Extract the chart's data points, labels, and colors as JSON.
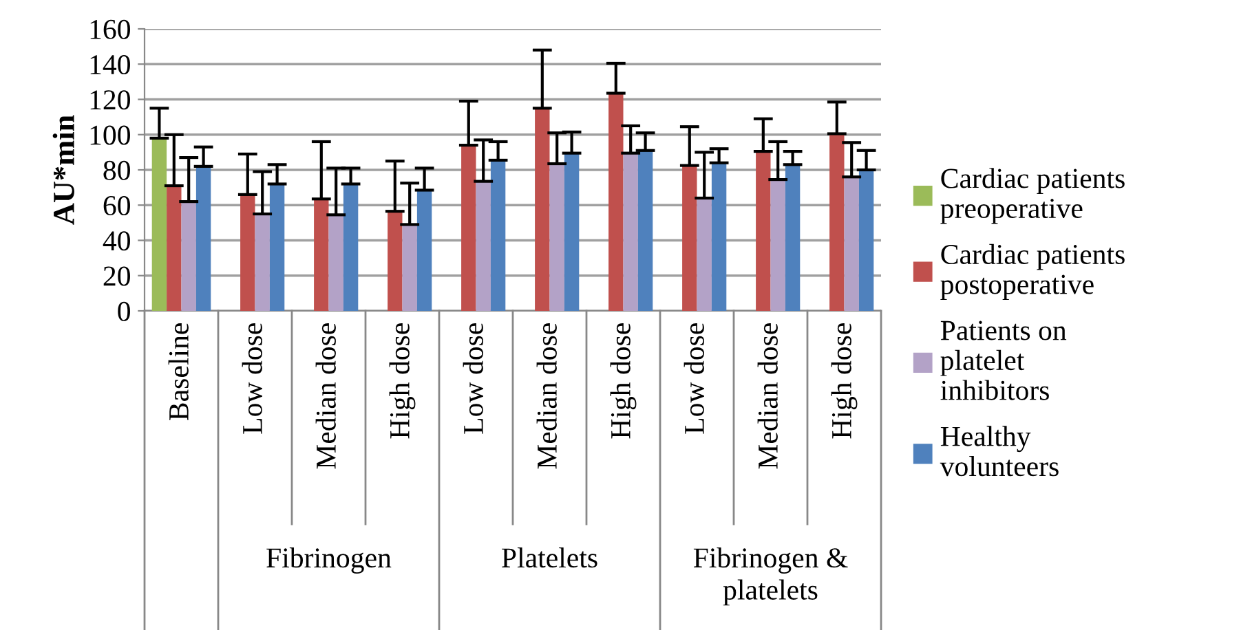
{
  "chart_data": {
    "type": "bar",
    "ylabel": "AU*min",
    "categories": [
      "Baseline",
      "Low dose",
      "Median dose",
      "High dose",
      "Low dose",
      "Median dose",
      "High dose",
      "Low dose",
      "Median dose",
      "High dose"
    ],
    "annotations": [
      "Fibrinogen",
      "Platelets",
      "Fibrinogen & platelets"
    ],
    "series": [
      {
        "name": "Cardiac patients preoperative",
        "color": "#9bbb59",
        "values": [
          98,
          null,
          null,
          null,
          null,
          null,
          null,
          null,
          null,
          null
        ],
        "errors": [
          [
            98,
            115
          ],
          null,
          null,
          null,
          null,
          null,
          null,
          null,
          null,
          null
        ]
      },
      {
        "name": "Cardiac patients postoperative",
        "color": "#c0504d",
        "values": [
          71,
          66,
          63.5,
          56.5,
          94,
          115,
          123.5,
          82.5,
          90.5,
          100.5
        ],
        "errors": [
          [
            71,
            100
          ],
          [
            66,
            89
          ],
          [
            63.5,
            96
          ],
          [
            56.5,
            85
          ],
          [
            94,
            119
          ],
          [
            115,
            148
          ],
          [
            123.5,
            140.5
          ],
          [
            82.5,
            104.5
          ],
          [
            90.5,
            109
          ],
          [
            100.5,
            118.5
          ]
        ]
      },
      {
        "name": "Patients on platelet inhibitors",
        "color": "#b3a2c7",
        "values": [
          62,
          55,
          54.5,
          49,
          73.5,
          83.5,
          89.5,
          64,
          74.5,
          76
        ],
        "errors": [
          [
            62,
            87
          ],
          [
            55,
            79
          ],
          [
            54.5,
            81
          ],
          [
            49,
            72.5
          ],
          [
            73.5,
            97
          ],
          [
            83.5,
            101
          ],
          [
            89.5,
            105
          ],
          [
            64,
            90
          ],
          [
            74.5,
            96
          ],
          [
            76,
            95.5
          ]
        ]
      },
      {
        "name": "Healthy volunteers",
        "color": "#4f81bd",
        "values": [
          82,
          72,
          72,
          68.5,
          85.5,
          89.5,
          91,
          84,
          83,
          80
        ],
        "errors": [
          [
            82,
            93
          ],
          [
            72,
            83
          ],
          [
            72,
            81
          ],
          [
            68.5,
            81
          ],
          [
            85.5,
            96
          ],
          [
            89.5,
            101.5
          ],
          [
            91,
            101
          ],
          [
            84,
            92
          ],
          [
            83,
            90.5
          ],
          [
            80,
            91
          ]
        ]
      }
    ],
    "ylim": [
      0,
      160
    ],
    "yticks": [
      0,
      20,
      40,
      60,
      80,
      100,
      120,
      140,
      160
    ],
    "grid": "y",
    "legend": "right"
  }
}
